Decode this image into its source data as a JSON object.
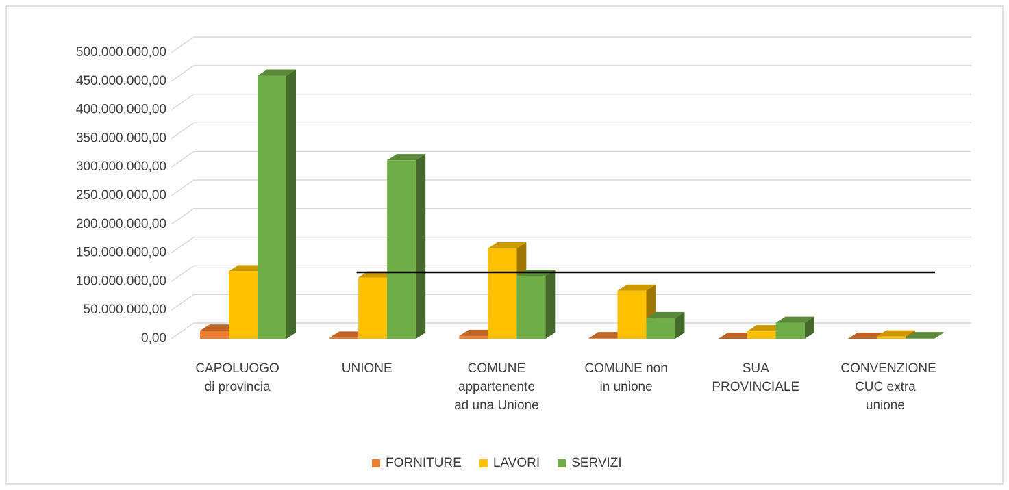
{
  "chart_data": {
    "type": "bar3d",
    "categories": [
      "CAPOLUOGO di provincia",
      "UNIONE",
      "COMUNE appartenente ad una Unione",
      "COMUNE non in unione",
      "SUA PROVINCIALE",
      "CONVENZIONE CUC extra unione"
    ],
    "series": [
      {
        "name": "FORNITURE",
        "color": "#ed7d31",
        "values": [
          14000000,
          2000000,
          5000000,
          1000000,
          0,
          0
        ]
      },
      {
        "name": "LAVORI",
        "color": "#ffc000",
        "values": [
          118000000,
          107000000,
          158000000,
          84000000,
          13000000,
          4000000
        ]
      },
      {
        "name": "SERVIZI",
        "color": "#70ad47",
        "values": [
          460000000,
          312000000,
          110000000,
          36000000,
          28000000,
          1000000
        ]
      }
    ],
    "ylim": [
      0,
      500000000
    ],
    "yticks": [
      {
        "value": 0,
        "label": "0,00"
      },
      {
        "value": 50000000,
        "label": "50.000.000,00"
      },
      {
        "value": 100000000,
        "label": "100.000.000,00"
      },
      {
        "value": 150000000,
        "label": "150.000.000,00"
      },
      {
        "value": 200000000,
        "label": "200.000.000,00"
      },
      {
        "value": 250000000,
        "label": "250.000.000,00"
      },
      {
        "value": 300000000,
        "label": "300.000.000,00"
      },
      {
        "value": 350000000,
        "label": "350.000.000,00"
      },
      {
        "value": 400000000,
        "label": "400.000.000,00"
      },
      {
        "value": 450000000,
        "label": "450.000.000,00"
      },
      {
        "value": 500000000,
        "label": "500.000.000,00"
      }
    ],
    "grid": true,
    "reference_line": 116000000,
    "legend": "bottom"
  }
}
